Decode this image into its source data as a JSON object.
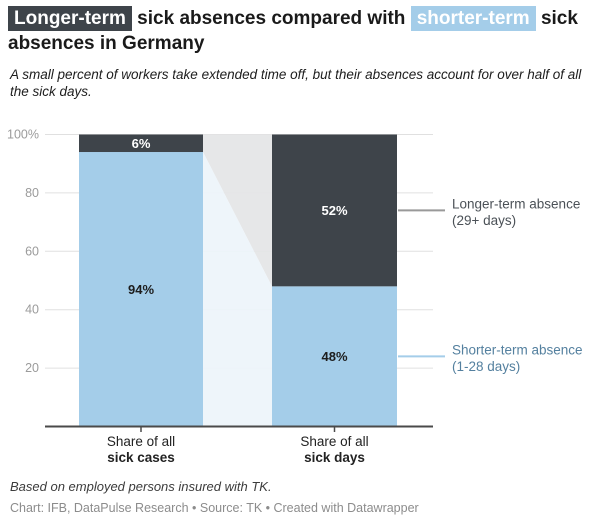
{
  "header": {
    "title": {
      "highlight_dark": "Longer-term",
      "middle": " sick absences compared with ",
      "highlight_blue": "shorter-term",
      "rest": " sick absences in Germany"
    },
    "description": "A small percent of workers take extended time off, but their absences account for over half of all the sick days."
  },
  "chart_data": {
    "type": "bar",
    "stacked": true,
    "title": "Longer-term sick absences compared with shorter-term sick absences in Germany",
    "categories": [
      "Share of all sick cases",
      "Share of all sick days"
    ],
    "category_labels": [
      {
        "line1": "Share of all",
        "line2": "sick cases"
      },
      {
        "line1": "Share of all",
        "line2": "sick days"
      }
    ],
    "series": [
      {
        "name": "Shorter-term absence (1-28 days)",
        "values": [
          94,
          48
        ],
        "value_labels": [
          "94%",
          "48%"
        ],
        "color": "#a4cde9",
        "connector_color": "#edf4fa",
        "label_color": "#1d1d1d",
        "legend": {
          "line1": "Shorter-term absence",
          "line2": "(1-28 days)",
          "text_color": "#54809f",
          "line_color": "#a4cde9"
        }
      },
      {
        "name": "Longer-term absence (29+ days)",
        "values": [
          6,
          52
        ],
        "value_labels": [
          "6%",
          "52%"
        ],
        "color": "#3e444a",
        "connector_color": "#e4e5e6",
        "label_color": "#ffffff",
        "legend": {
          "line1": "Longer-term absence",
          "line2": "(29+ days)",
          "text_color": "#4b5157",
          "line_color": "#999999"
        }
      }
    ],
    "y_axis": {
      "range": [
        0,
        100
      ],
      "grid": true,
      "ticks": [
        {
          "value": 100,
          "label": "100%"
        },
        {
          "value": 80,
          "label": "80"
        },
        {
          "value": 60,
          "label": "60"
        },
        {
          "value": 40,
          "label": "40"
        },
        {
          "value": 20,
          "label": "20"
        }
      ]
    },
    "legend_position": "right",
    "colors": {
      "grid": "#e0e0e0",
      "axis_text": "#9b9b9b",
      "baseline": "#4a4a4a"
    }
  },
  "footer": {
    "notes": "Based on employed persons insured with TK.",
    "byline": "Chart: IFB, DataPulse Research • Source: TK • Created with Datawrapper"
  }
}
